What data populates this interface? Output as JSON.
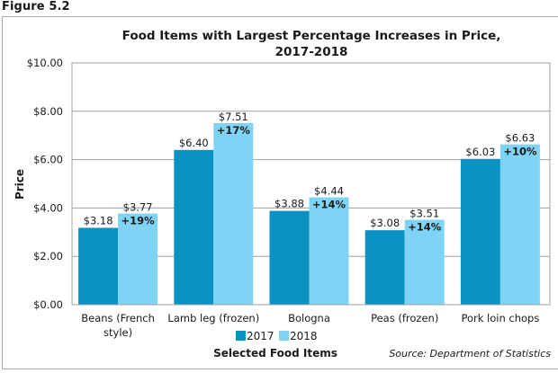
{
  "figure_label": "Figure 5.2",
  "chart_data": {
    "type": "bar",
    "title_line1": "Food Items with Largest Percentage Increases in Price,",
    "title_line2": "2017-2018",
    "xlabel": "Selected Food Items",
    "ylabel": "Price",
    "ylim": [
      0,
      10
    ],
    "yticks": [
      0,
      2,
      4,
      6,
      8,
      10
    ],
    "ytick_labels": [
      "$0.00",
      "$2.00",
      "$4.00",
      "$6.00",
      "$8.00",
      "$10.00"
    ],
    "grid": true,
    "legend_position": "bottom-center",
    "categories": [
      [
        "Beans (French",
        "style)"
      ],
      [
        "Lamb leg (frozen)"
      ],
      [
        "Bologna"
      ],
      [
        "Peas (frozen)"
      ],
      [
        "Pork loin chops"
      ]
    ],
    "series": [
      {
        "name": "2017",
        "color": "#0A93C2",
        "values": [
          3.18,
          6.4,
          3.88,
          3.08,
          6.03
        ],
        "labels": [
          "$3.18",
          "$6.40",
          "$3.88",
          "$3.08",
          "$6.03"
        ]
      },
      {
        "name": "2018",
        "color": "#7FD4F5",
        "values": [
          3.77,
          7.51,
          4.44,
          3.51,
          6.63
        ],
        "labels": [
          "$3.77",
          "$7.51",
          "$4.44",
          "$3.51",
          "$6.63"
        ]
      }
    ],
    "percent_change_labels": [
      "+19%",
      "+17%",
      "+14%",
      "+14%",
      "+10%"
    ],
    "source": "Source: Department of Statistics",
    "gridline_color": "#a0a0a0"
  }
}
